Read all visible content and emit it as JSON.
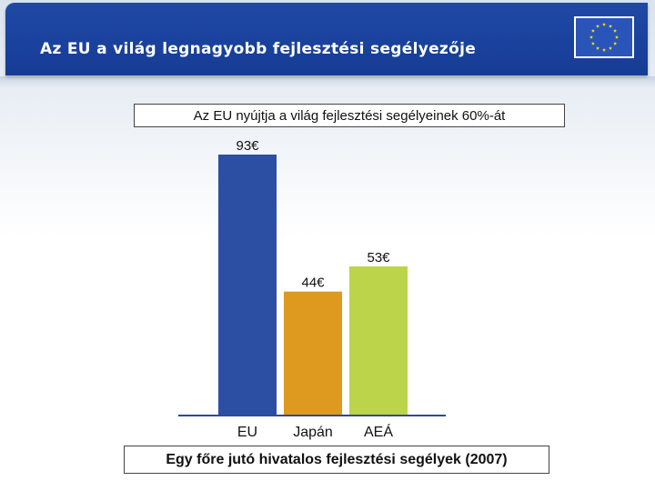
{
  "slide": {
    "title": "Az EU a világ legnagyobb fejlesztési segélyezője",
    "subtitle": "Az EU nyújtja a világ fejlesztési segélyeinek 60%-át",
    "footer": "Egy főre jutó hivatalos fejlesztési segélyek (2007)",
    "logo_icon": "eu-flag-icon",
    "header_color": "#1a44a0"
  },
  "chart_data": {
    "type": "bar",
    "title": "",
    "xlabel": "",
    "ylabel": "",
    "categories": [
      "EU",
      "Japán",
      "AEÁ"
    ],
    "values": [
      93,
      44,
      53
    ],
    "data_labels": [
      "93€",
      "44€",
      "53€"
    ],
    "colors": [
      "#2d4fa3",
      "#dd9a1f",
      "#bcd44a"
    ],
    "ylim": [
      0,
      100
    ],
    "grid": false,
    "legend": "none"
  }
}
